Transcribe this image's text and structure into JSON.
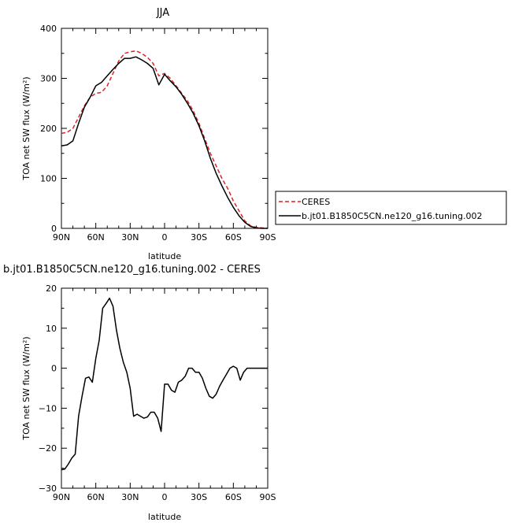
{
  "chart_data": [
    {
      "type": "line",
      "title": "JJA",
      "xlabel": "latitude",
      "ylabel": "TOA net SW flux (W/m²)",
      "xlim": [
        -90,
        90
      ],
      "ylim": [
        0,
        400
      ],
      "x_ticks": [
        -90,
        -60,
        -30,
        0,
        30,
        60,
        90
      ],
      "x_tick_labels": [
        "90N",
        "60N",
        "30N",
        "0",
        "30S",
        "60S",
        "90S"
      ],
      "y_ticks": [
        0,
        100,
        200,
        300,
        400
      ],
      "y_tick_labels": [
        "0",
        "100",
        "200",
        "300",
        "400"
      ],
      "legend_position": "right",
      "series": [
        {
          "name": "CERES",
          "color": "#d62728",
          "dash": "dashed",
          "x": [
            -90,
            -85,
            -80,
            -75,
            -70,
            -65,
            -60,
            -55,
            -50,
            -45,
            -40,
            -35,
            -30,
            -25,
            -20,
            -15,
            -10,
            -5,
            0,
            5,
            10,
            15,
            20,
            25,
            30,
            35,
            40,
            45,
            50,
            55,
            60,
            65,
            70,
            75,
            80,
            85,
            90
          ],
          "y": [
            190,
            192,
            200,
            222,
            245,
            262,
            270,
            272,
            285,
            310,
            335,
            350,
            353,
            355,
            350,
            342,
            330,
            305,
            310,
            300,
            285,
            270,
            255,
            235,
            210,
            180,
            150,
            125,
            100,
            80,
            55,
            35,
            15,
            5,
            2,
            1,
            0
          ]
        },
        {
          "name": "b.jt01.B1850C5CN.ne120_g16.tuning.002",
          "color": "#000000",
          "dash": "solid",
          "x": [
            -90,
            -85,
            -80,
            -75,
            -70,
            -65,
            -60,
            -55,
            -50,
            -45,
            -40,
            -35,
            -30,
            -25,
            -20,
            -15,
            -10,
            -5,
            0,
            5,
            10,
            15,
            20,
            25,
            30,
            35,
            40,
            45,
            50,
            55,
            60,
            65,
            70,
            75,
            80,
            85,
            90
          ],
          "y": [
            165,
            167,
            175,
            210,
            242,
            262,
            285,
            292,
            305,
            318,
            330,
            340,
            340,
            343,
            337,
            330,
            320,
            287,
            308,
            295,
            283,
            268,
            250,
            230,
            205,
            175,
            140,
            110,
            85,
            62,
            42,
            25,
            12,
            4,
            1,
            0,
            0
          ]
        }
      ]
    },
    {
      "type": "line",
      "title": "b.jt01.B1850C5CN.ne120_g16.tuning.002 - CERES",
      "xlabel": "latitude",
      "ylabel": "TOA net SW flux (W/m²)",
      "xlim": [
        -90,
        90
      ],
      "ylim": [
        -30,
        20
      ],
      "x_ticks": [
        -90,
        -60,
        -30,
        0,
        30,
        60,
        90
      ],
      "x_tick_labels": [
        "90N",
        "60N",
        "30N",
        "0",
        "30S",
        "60S",
        "90S"
      ],
      "y_ticks": [
        -30,
        -20,
        -10,
        0,
        10,
        20
      ],
      "y_tick_labels": [
        "−30",
        "−20",
        "−10",
        "0",
        "10",
        "20"
      ],
      "series": [
        {
          "color": "#000000",
          "dash": "solid",
          "x": [
            -90,
            -87,
            -84,
            -81,
            -78,
            -75,
            -72,
            -69,
            -66,
            -63,
            -60,
            -57,
            -54,
            -51,
            -48,
            -45,
            -42,
            -39,
            -36,
            -33,
            -30,
            -27,
            -24,
            -21,
            -18,
            -15,
            -12,
            -9,
            -6,
            -3,
            0,
            3,
            6,
            9,
            12,
            15,
            18,
            21,
            24,
            27,
            30,
            33,
            36,
            39,
            42,
            45,
            48,
            51,
            54,
            57,
            60,
            63,
            66,
            69,
            72,
            75,
            78,
            81,
            84,
            87,
            90
          ],
          "y": [
            -25.4,
            -25.2,
            -24,
            -22.5,
            -21.5,
            -12,
            -7,
            -2.5,
            -2.2,
            -3.5,
            2.5,
            7,
            15,
            16.2,
            17.5,
            15.5,
            9.5,
            5,
            1.5,
            -1,
            -5,
            -12,
            -11.5,
            -12,
            -12.5,
            -12.2,
            -11,
            -11,
            -12.5,
            -15.8,
            -4,
            -4,
            -5.5,
            -6,
            -3.5,
            -3,
            -2,
            0,
            0,
            -1,
            -1,
            -2.5,
            -5,
            -7,
            -7.5,
            -6.5,
            -4.5,
            -3,
            -1.5,
            0,
            0.5,
            0,
            -3,
            -1,
            0,
            0,
            0,
            0,
            0,
            0,
            0
          ]
        }
      ]
    }
  ]
}
